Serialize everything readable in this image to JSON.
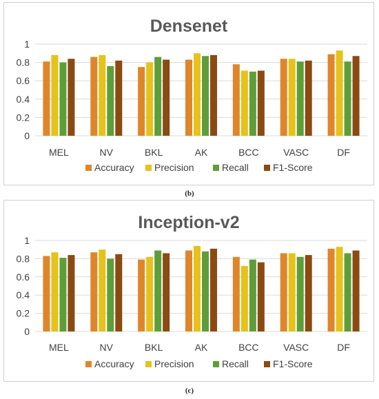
{
  "colors": {
    "accuracy": "#E0862A",
    "precision": "#E6C21A",
    "recall": "#5E9E3A",
    "f1": "#8B4A12",
    "grid": "#d9d9d9",
    "axis_text": "#404040",
    "title_text": "#595959"
  },
  "chart_data": [
    {
      "type": "bar",
      "title": "Densenet",
      "caption": "(b)",
      "categories": [
        "MEL",
        "NV",
        "BKL",
        "AK",
        "BCC",
        "VASC",
        "DF"
      ],
      "ylim": [
        0,
        1
      ],
      "yticks": [
        "0",
        "0.2",
        "0.4",
        "0.6",
        "0.8",
        "1"
      ],
      "grid": true,
      "legend": "bottom",
      "series": [
        {
          "name": "Accuracy",
          "values": [
            0.81,
            0.86,
            0.75,
            0.83,
            0.78,
            0.84,
            0.89
          ]
        },
        {
          "name": "Precision",
          "values": [
            0.88,
            0.88,
            0.8,
            0.9,
            0.71,
            0.84,
            0.93
          ]
        },
        {
          "name": "Recall",
          "values": [
            0.8,
            0.76,
            0.86,
            0.87,
            0.7,
            0.81,
            0.81
          ]
        },
        {
          "name": "F1-Score",
          "values": [
            0.84,
            0.82,
            0.83,
            0.88,
            0.71,
            0.82,
            0.87
          ]
        }
      ]
    },
    {
      "type": "bar",
      "title": "Inception-v2",
      "caption": "(c)",
      "categories": [
        "MEL",
        "NV",
        "BKL",
        "AK",
        "BCC",
        "VASC",
        "DF"
      ],
      "ylim": [
        0,
        1
      ],
      "yticks": [
        "0",
        "0.2",
        "0.4",
        "0.6",
        "0.8",
        "1"
      ],
      "grid": true,
      "legend": "bottom",
      "series": [
        {
          "name": "Accuracy",
          "values": [
            0.83,
            0.87,
            0.79,
            0.89,
            0.82,
            0.86,
            0.91
          ]
        },
        {
          "name": "Precision",
          "values": [
            0.87,
            0.9,
            0.82,
            0.94,
            0.72,
            0.86,
            0.93
          ]
        },
        {
          "name": "Recall",
          "values": [
            0.81,
            0.8,
            0.89,
            0.88,
            0.79,
            0.82,
            0.86
          ]
        },
        {
          "name": "F1-Score",
          "values": [
            0.84,
            0.85,
            0.86,
            0.91,
            0.76,
            0.84,
            0.89
          ]
        }
      ]
    }
  ]
}
